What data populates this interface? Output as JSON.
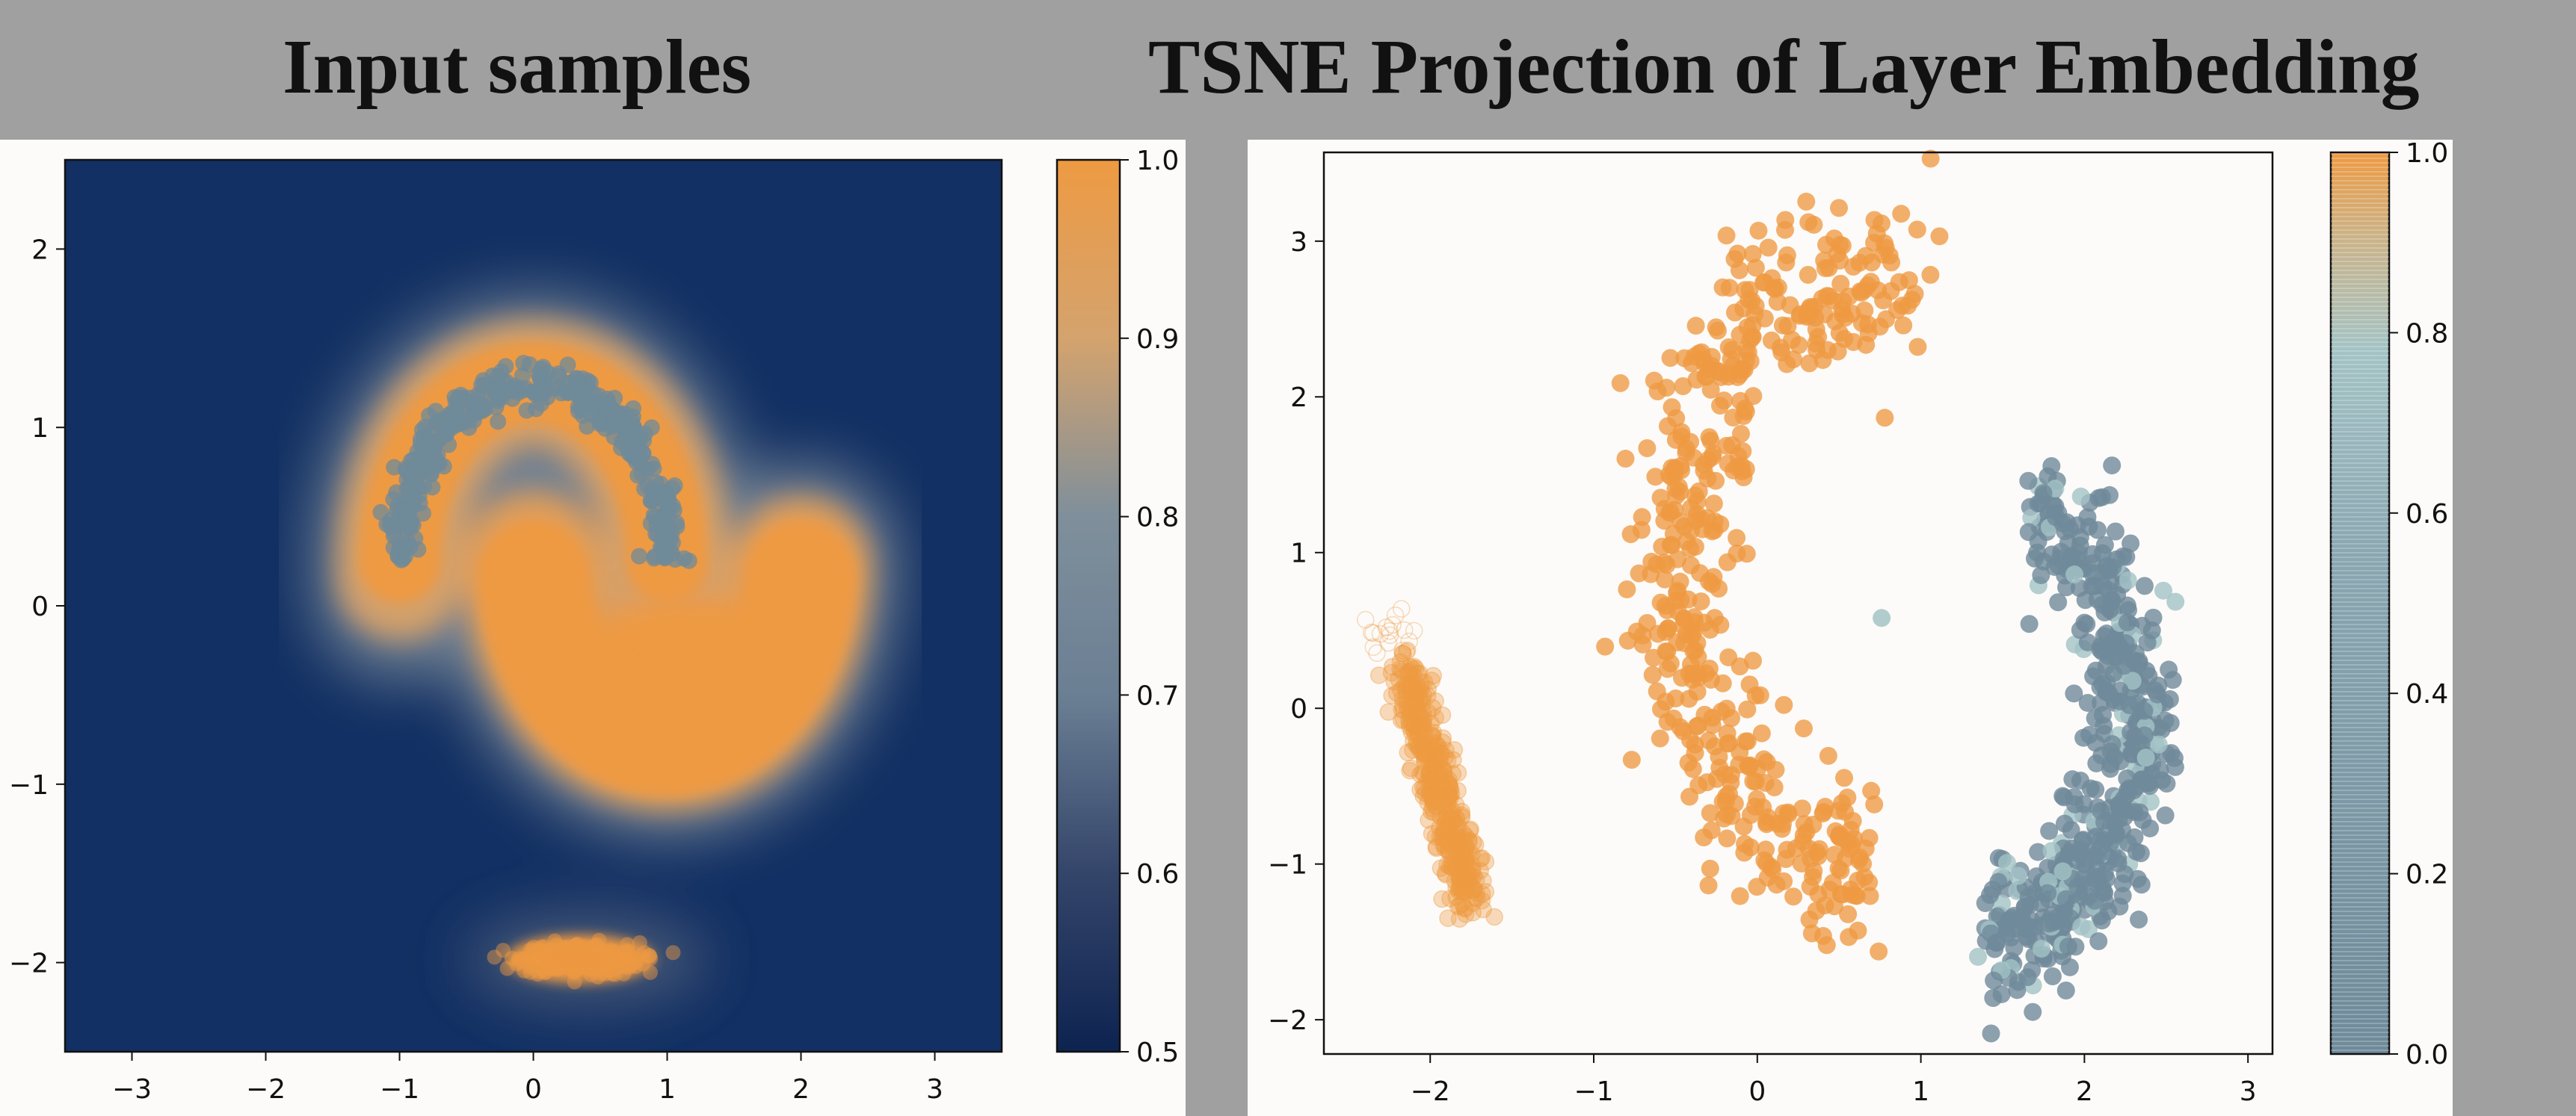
{
  "titles": {
    "left": "Input samples",
    "right": "TSNE Projection of Layer Embedding"
  },
  "colors": {
    "navy": "#123063",
    "orange": "#ee9a42",
    "slate": "#6f8a9a",
    "teal_light": "#a3c3c5",
    "page_bg": "#a0a0a0",
    "panel_bg": "#fcfbf9"
  },
  "chart_data": [
    {
      "type": "heatmap",
      "title": "Input samples",
      "xlim": [
        -3.5,
        3.5
      ],
      "ylim": [
        -2.5,
        2.5
      ],
      "xticks": [
        "−3",
        "−2",
        "−1",
        "0",
        "1",
        "2",
        "3"
      ],
      "yticks": [
        "−2",
        "−1",
        "0",
        "1",
        "2"
      ],
      "colorbar": {
        "range": [
          0.5,
          1.0
        ],
        "ticks": [
          "0.5",
          "0.6",
          "0.7",
          "0.8",
          "0.9",
          "1.0"
        ]
      },
      "clusters": [
        {
          "name": "",
          "shape": "upper-moon",
          "center": [
            0,
            0.25
          ],
          "radius": 1.0,
          "arc": [
            0,
            180
          ],
          "color": "#6f8a9a"
        },
        {
          "name": "",
          "shape": "lower-moon",
          "center": [
            1,
            0.25
          ],
          "radius": 1.0,
          "arc": [
            180,
            360
          ],
          "color": "#ee9a42"
        },
        {
          "name": "",
          "shape": "blob",
          "center": [
            0.35,
            -1.98
          ],
          "spread": [
            0.4,
            0.08
          ],
          "color": "#ee9a42"
        }
      ]
    },
    {
      "type": "scatter",
      "title": "",
      "xlim": [
        -2.65,
        3.15
      ],
      "ylim": [
        -2.22,
        3.57
      ],
      "xticks": [
        "−2",
        "−1",
        "0",
        "1",
        "2",
        "3"
      ],
      "yticks": [
        "−2",
        "−1",
        "0",
        "1",
        "2",
        "3"
      ],
      "colorbar": {
        "range": [
          0.0,
          1.0
        ],
        "ticks": [
          "0.0",
          "0.2",
          "0.4",
          "0.6",
          "0.8",
          "1.0"
        ]
      },
      "clusters": [
        {
          "name": "",
          "shape": "arc",
          "center": [
            0.6,
            0.9
          ],
          "rx": 1.1,
          "ry": 1.9,
          "arc_deg": [
            70,
            275
          ],
          "color": "#ee9a42"
        },
        {
          "name": "",
          "shape": "arc",
          "center": [
            1.55,
            -0.05
          ],
          "rx": 0.75,
          "ry": 1.35,
          "arc_deg": [
            -100,
            78
          ],
          "color": "#6f8a9a"
        },
        {
          "name": "",
          "shape": "streak",
          "from": [
            -2.15,
            0.25
          ],
          "to": [
            -1.75,
            -1.25
          ],
          "color": "#ee9a42"
        }
      ]
    }
  ]
}
